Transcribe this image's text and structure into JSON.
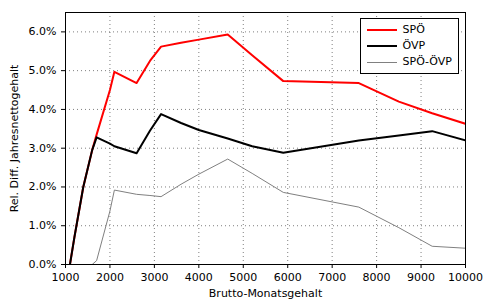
{
  "chart_data": {
    "type": "line",
    "x_label": "Brutto-Monatsgehalt",
    "y_label": "Rel. Diff. Jahresnettogehalt",
    "x": [
      1100,
      1200,
      1400,
      1600,
      1700,
      2000,
      2100,
      2600,
      2900,
      3150,
      3600,
      4000,
      4650,
      5200,
      5900,
      7600,
      8500,
      9250,
      10000
    ],
    "series": [
      {
        "name": "SPÖ",
        "color": "#ff0000",
        "values": [
          0,
          0.7,
          2.0,
          2.95,
          3.35,
          4.5,
          4.97,
          4.68,
          5.25,
          5.62,
          5.72,
          5.8,
          5.93,
          5.4,
          4.73,
          4.68,
          4.2,
          3.9,
          3.63
        ]
      },
      {
        "name": "ÖVP",
        "color": "#000000",
        "values": [
          0,
          0.7,
          2.0,
          2.95,
          3.28,
          3.12,
          3.05,
          2.87,
          3.45,
          3.88,
          3.65,
          3.47,
          3.25,
          3.05,
          2.88,
          3.2,
          3.33,
          3.44,
          3.2
        ]
      },
      {
        "name": "SPÖ-ÖVP",
        "color": "#808080",
        "values": [
          0,
          0,
          0,
          0,
          0.1,
          1.38,
          1.92,
          1.81,
          1.78,
          1.75,
          2.07,
          2.33,
          2.72,
          2.35,
          1.86,
          1.48,
          0.95,
          0.47,
          0.42
        ]
      }
    ],
    "xlim": [
      1000,
      10000
    ],
    "xticks": [
      1000,
      2000,
      3000,
      4000,
      5000,
      6000,
      7000,
      8000,
      9000,
      10000
    ],
    "ylim": [
      0,
      6.5
    ],
    "yticks": [
      {
        "value": 0,
        "label": "0.0%"
      },
      {
        "value": 1,
        "label": "1.0%"
      },
      {
        "value": 2,
        "label": "2.0%"
      },
      {
        "value": 3,
        "label": "3.0%"
      },
      {
        "value": 4,
        "label": "4.0%"
      },
      {
        "value": 5,
        "label": "5.0%"
      },
      {
        "value": 6,
        "label": "6.0%"
      }
    ],
    "grid": true,
    "legend": "upper right"
  }
}
